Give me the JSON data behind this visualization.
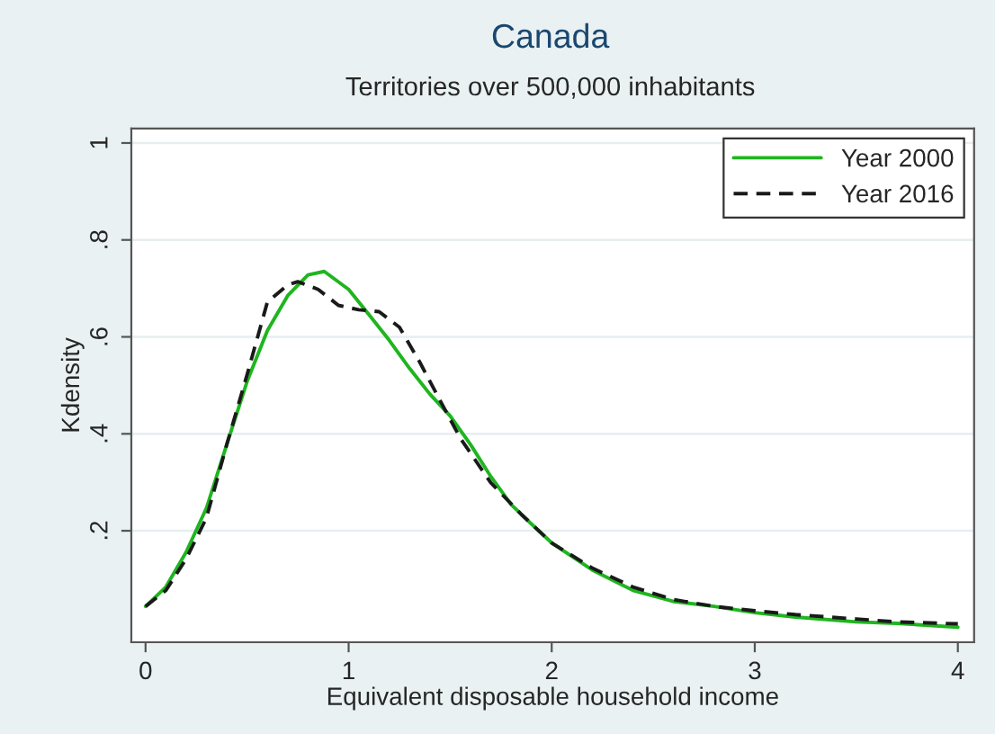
{
  "chart_data": {
    "type": "line",
    "title": "Canada",
    "subtitle": "Territories over 500,000 inhabitants",
    "xlabel": "Equivalent disposable household income",
    "ylabel": "Kdensity",
    "xlim": [
      -0.07,
      4.08
    ],
    "ylim": [
      -0.03,
      1.03
    ],
    "xticks": [
      0,
      1,
      2,
      3,
      4
    ],
    "yticks": [
      {
        "value": 0.2,
        "label": ".2"
      },
      {
        "value": 0.4,
        "label": ".4"
      },
      {
        "value": 0.6,
        "label": ".6"
      },
      {
        "value": 0.8,
        "label": ".8"
      },
      {
        "value": 1,
        "label": "1"
      }
    ],
    "grid": "y",
    "legend": "top right",
    "marker": "none",
    "series": [
      {
        "name": "Year 2000",
        "color": "#1fb51f",
        "line_style": "solid",
        "x": [
          0,
          0.1,
          0.2,
          0.3,
          0.4,
          0.5,
          0.6,
          0.7,
          0.8,
          0.88,
          1.0,
          1.1,
          1.2,
          1.3,
          1.4,
          1.5,
          1.6,
          1.7,
          1.8,
          1.9,
          2.0,
          2.2,
          2.4,
          2.6,
          2.8,
          3.0,
          3.2,
          3.5,
          3.7,
          4.0
        ],
        "values": [
          0.044,
          0.084,
          0.156,
          0.247,
          0.378,
          0.508,
          0.613,
          0.685,
          0.728,
          0.735,
          0.698,
          0.646,
          0.593,
          0.535,
          0.482,
          0.437,
          0.378,
          0.312,
          0.254,
          0.214,
          0.175,
          0.119,
          0.077,
          0.054,
          0.044,
          0.031,
          0.022,
          0.012,
          0.009,
          0.001
        ]
      },
      {
        "name": "Year 2016",
        "color": "#1a1a1a",
        "line_style": "dashed",
        "x": [
          0,
          0.1,
          0.2,
          0.3,
          0.4,
          0.5,
          0.6,
          0.7,
          0.75,
          0.85,
          0.95,
          1.05,
          1.15,
          1.25,
          1.35,
          1.45,
          1.55,
          1.7,
          1.85,
          2.0,
          2.2,
          2.4,
          2.6,
          2.8,
          3.0,
          3.2,
          3.5,
          3.7,
          4.0
        ],
        "values": [
          0.044,
          0.077,
          0.142,
          0.227,
          0.378,
          0.522,
          0.672,
          0.707,
          0.714,
          0.698,
          0.665,
          0.656,
          0.652,
          0.62,
          0.548,
          0.469,
          0.391,
          0.299,
          0.234,
          0.175,
          0.123,
          0.084,
          0.058,
          0.044,
          0.035,
          0.027,
          0.018,
          0.012,
          0.008
        ]
      }
    ]
  }
}
